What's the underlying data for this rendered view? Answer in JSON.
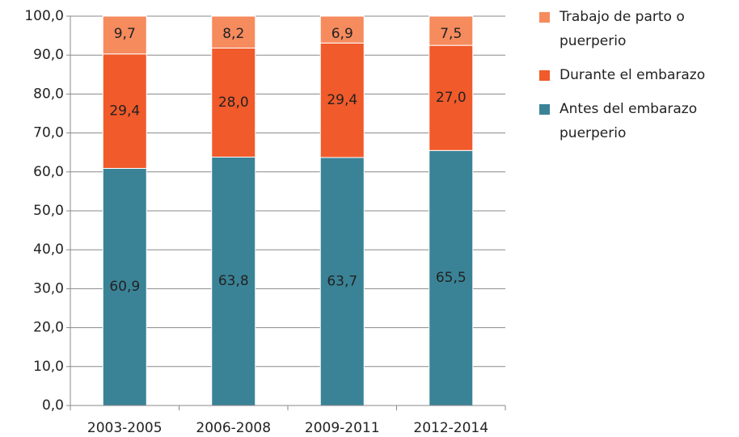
{
  "chart_data": {
    "type": "stacked_bar",
    "categories": [
      "2003-2005",
      "2006-2008",
      "2009-2011",
      "2012-2014"
    ],
    "series": [
      {
        "name": "Antes del embarazo puerperio",
        "color": "#3a8397",
        "values": [
          60.9,
          63.8,
          63.7,
          65.5
        ],
        "value_labels": [
          "60,9",
          "63,8",
          "63,7",
          "65,5"
        ]
      },
      {
        "name": "Durante el embarazo",
        "color": "#f15a2b",
        "values": [
          29.4,
          28.0,
          29.4,
          27.0
        ],
        "value_labels": [
          "29,4",
          "28,0",
          "29,4",
          "27,0"
        ]
      },
      {
        "name": "Trabajo de parto o puerperio",
        "color": "#f68b5e",
        "values": [
          9.7,
          8.2,
          6.9,
          7.5
        ],
        "value_labels": [
          "9,7",
          "8,2",
          "6,9",
          "7,5"
        ]
      }
    ],
    "ylim": [
      0,
      100
    ],
    "yticks": [
      {
        "value": 0,
        "label": "0,0"
      },
      {
        "value": 10,
        "label": "10,0"
      },
      {
        "value": 20,
        "label": "20,0"
      },
      {
        "value": 30,
        "label": "30,0"
      },
      {
        "value": 40,
        "label": "40,0"
      },
      {
        "value": 50,
        "label": "50,0"
      },
      {
        "value": 60,
        "label": "60,0"
      },
      {
        "value": 70,
        "label": "70,0"
      },
      {
        "value": 80,
        "label": "80,0"
      },
      {
        "value": 90,
        "label": "90,0"
      },
      {
        "value": 100,
        "label": "100,0"
      }
    ],
    "grid": true,
    "legend": "right"
  }
}
